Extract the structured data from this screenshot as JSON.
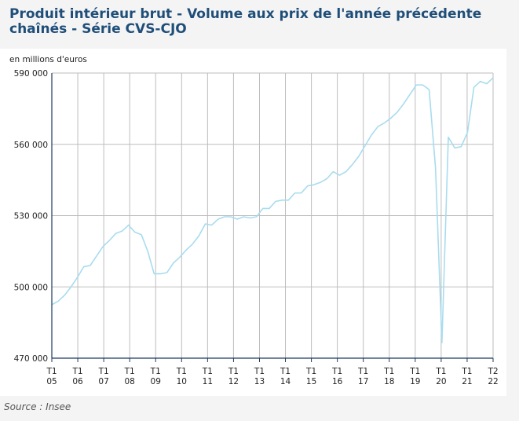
{
  "chart_data": {
    "type": "line",
    "title": "Produit intérieur brut - Volume aux prix de l'année précédente chaînés - Série CVS-CJO",
    "ylabel": "en millions d'euros",
    "source": "Source : Insee",
    "ylim": [
      470000,
      590000
    ],
    "yticks": [
      470000,
      500000,
      530000,
      560000,
      590000
    ],
    "ytick_labels": [
      "470 000",
      "500 000",
      "530 000",
      "560 000",
      "590 000"
    ],
    "grid": true,
    "legend": "none",
    "line_color": "#a8dcef",
    "xtick_labels": [
      {
        "top": "T1",
        "bottom": "05"
      },
      {
        "top": "T1",
        "bottom": "06"
      },
      {
        "top": "T1",
        "bottom": "07"
      },
      {
        "top": "T1",
        "bottom": "08"
      },
      {
        "top": "T1",
        "bottom": "09"
      },
      {
        "top": "T1",
        "bottom": "10"
      },
      {
        "top": "T1",
        "bottom": "11"
      },
      {
        "top": "T1",
        "bottom": "12"
      },
      {
        "top": "T1",
        "bottom": "13"
      },
      {
        "top": "T1",
        "bottom": "14"
      },
      {
        "top": "T1",
        "bottom": "15"
      },
      {
        "top": "T1",
        "bottom": "16"
      },
      {
        "top": "T1",
        "bottom": "17"
      },
      {
        "top": "T1",
        "bottom": "18"
      },
      {
        "top": "T1",
        "bottom": "19"
      },
      {
        "top": "T1",
        "bottom": "20"
      },
      {
        "top": "T1",
        "bottom": "21"
      },
      {
        "top": "T2",
        "bottom": "22"
      }
    ],
    "series": [
      {
        "values": [
          492500,
          494000,
          496500,
          500000,
          504000,
          508500,
          509000,
          513000,
          517000,
          519500,
          522500,
          523500,
          526000,
          523000,
          522000,
          515000,
          505500,
          505500,
          506000,
          510000,
          512500,
          515500,
          518000,
          521500,
          526500,
          526000,
          528500,
          529500,
          529500,
          528500,
          529500,
          529000,
          529500,
          533000,
          533000,
          536000,
          536500,
          536500,
          539500,
          539500,
          542500,
          543000,
          544000,
          545500,
          548500,
          547000,
          548500,
          551500,
          555000,
          559500,
          564000,
          567500,
          569000,
          571000,
          573500,
          577000,
          581000,
          585000,
          585000,
          583000,
          550000,
          476500,
          563000,
          558500,
          559000,
          565000,
          584000,
          586500,
          585500,
          588000
        ]
      }
    ]
  }
}
